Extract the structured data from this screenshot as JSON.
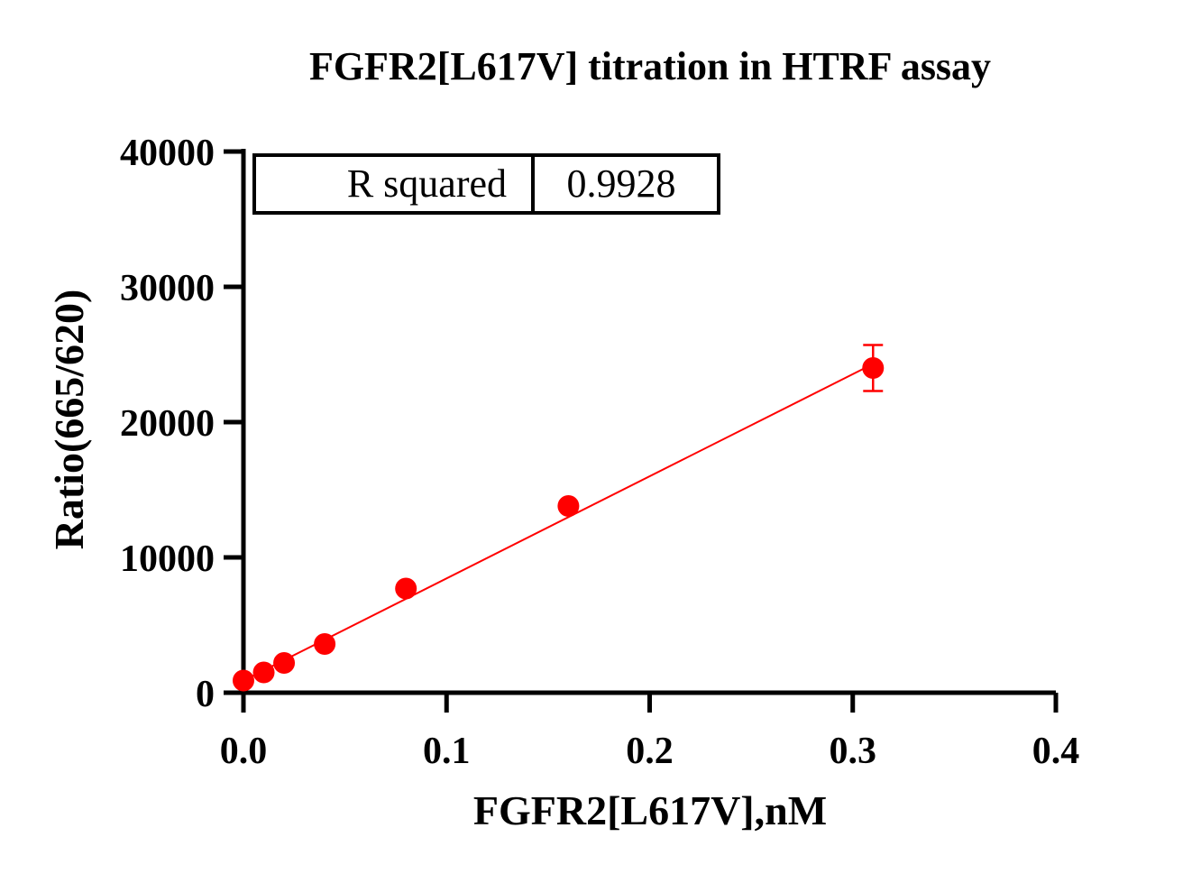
{
  "chart_data": {
    "type": "scatter",
    "title": "FGFR2[L617V] titration in HTRF assay",
    "xlabel": "FGFR2[L617V],nM",
    "ylabel": "Ratio(665/620)",
    "xlim": [
      0,
      0.4
    ],
    "ylim": [
      0,
      40000
    ],
    "x_ticks": [
      0,
      0.1,
      0.2,
      0.3,
      0.4
    ],
    "x_tick_labels": [
      "0.0",
      "0.1",
      "0.2",
      "0.3",
      "0.4"
    ],
    "y_ticks": [
      0,
      10000,
      20000,
      30000,
      40000
    ],
    "y_tick_labels": [
      "0",
      "10000",
      "20000",
      "30000",
      "40000"
    ],
    "grid": false,
    "color": "#ff0000",
    "series": [
      {
        "x": [
          0,
          0.01,
          0.02,
          0.04,
          0.08,
          0.16,
          0.31
        ],
        "y": [
          900,
          1500,
          2200,
          3600,
          7700,
          13800,
          24000
        ],
        "y_error": [
          0,
          0,
          0,
          0,
          0,
          0,
          1700
        ]
      }
    ],
    "fit_line": {
      "x": [
        0,
        0.31
      ],
      "y": [
        900,
        24300
      ]
    },
    "stats_table": {
      "label": "R squared",
      "value": "0.9928"
    }
  }
}
